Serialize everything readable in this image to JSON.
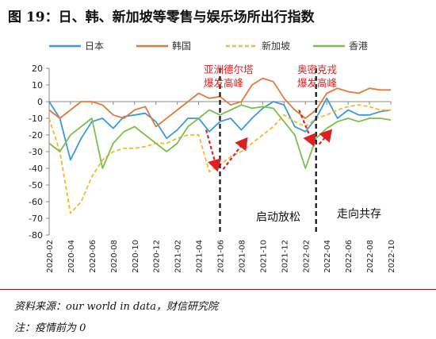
{
  "figure": {
    "title": "图 19：日、韩、新加坡等零售与娱乐场所出行指数",
    "source": "资料来源：our world in data，财信研究院",
    "note": "注：疫情前为 0"
  },
  "chart_data": {
    "type": "line",
    "ylim": [
      -80,
      20
    ],
    "yticks": [
      20,
      10,
      0,
      -10,
      -20,
      -30,
      -40,
      -50,
      -60,
      -70,
      -80
    ],
    "xlim": [
      "2020-02",
      "2022-10"
    ],
    "xticks": [
      "2020-02",
      "2020-04",
      "2020-06",
      "2020-08",
      "2020-10",
      "2020-12",
      "2021-02",
      "2021-04",
      "2021-06",
      "2021-08",
      "2021-10",
      "2021-12",
      "2022-02",
      "2022-04",
      "2022-06",
      "2022-08",
      "2022-10"
    ],
    "legend_position": "top",
    "grid": false,
    "series": [
      {
        "name": "日本",
        "color": "#3a9ad9",
        "dash": "solid",
        "x": [
          "2020-02",
          "2020-03",
          "2020-04",
          "2020-05",
          "2020-06",
          "2020-07",
          "2020-08",
          "2020-09",
          "2020-10",
          "2020-11",
          "2020-12",
          "2021-01",
          "2021-02",
          "2021-03",
          "2021-04",
          "2021-05",
          "2021-06",
          "2021-07",
          "2021-08",
          "2021-09",
          "2021-10",
          "2021-11",
          "2021-12",
          "2022-01",
          "2022-02",
          "2022-03",
          "2022-04",
          "2022-05",
          "2022-06",
          "2022-07",
          "2022-08",
          "2022-09",
          "2022-10"
        ],
        "values": [
          0,
          -10,
          -35,
          -22,
          -12,
          -10,
          -16,
          -9,
          -8,
          -7,
          -12,
          -22,
          -17,
          -10,
          -10,
          -18,
          -12,
          -10,
          -17,
          -10,
          -4,
          0,
          -2,
          -15,
          -18,
          -10,
          2,
          -10,
          -5,
          -8,
          -8,
          -6,
          -5
        ]
      },
      {
        "name": "韩国",
        "color": "#e07b39",
        "dash": "solid",
        "x": [
          "2020-02",
          "2020-03",
          "2020-04",
          "2020-05",
          "2020-06",
          "2020-07",
          "2020-08",
          "2020-09",
          "2020-10",
          "2020-11",
          "2020-12",
          "2021-01",
          "2021-02",
          "2021-03",
          "2021-04",
          "2021-05",
          "2021-06",
          "2021-07",
          "2021-08",
          "2021-09",
          "2021-10",
          "2021-11",
          "2021-12",
          "2022-01",
          "2022-02",
          "2022-03",
          "2022-04",
          "2022-05",
          "2022-06",
          "2022-07",
          "2022-08",
          "2022-09",
          "2022-10"
        ],
        "values": [
          -5,
          -10,
          -5,
          0,
          0,
          -2,
          -8,
          -10,
          -5,
          -3,
          -15,
          -10,
          -5,
          0,
          5,
          2,
          3,
          -2,
          0,
          10,
          14,
          12,
          2,
          -5,
          -10,
          -5,
          5,
          8,
          6,
          5,
          8,
          7,
          7
        ]
      },
      {
        "name": "新加坡",
        "color": "#f5b82e",
        "dash": "dashed",
        "x": [
          "2020-02",
          "2020-03",
          "2020-04",
          "2020-05",
          "2020-06",
          "2020-07",
          "2020-08",
          "2020-09",
          "2020-10",
          "2020-11",
          "2020-12",
          "2021-01",
          "2021-02",
          "2021-03",
          "2021-04",
          "2021-05",
          "2021-06",
          "2021-07",
          "2021-08",
          "2021-09",
          "2021-10",
          "2021-11",
          "2021-12",
          "2022-01",
          "2022-02",
          "2022-03",
          "2022-04",
          "2022-05",
          "2022-06",
          "2022-07",
          "2022-08",
          "2022-09",
          "2022-10"
        ],
        "values": [
          -10,
          -30,
          -67,
          -60,
          -45,
          -35,
          -30,
          -28,
          -28,
          -27,
          -25,
          -25,
          -22,
          -20,
          -20,
          -42,
          -38,
          -33,
          -30,
          -25,
          -20,
          -15,
          -8,
          -12,
          -15,
          -10,
          -8,
          -5,
          -3,
          -2,
          -3,
          -5,
          -5
        ]
      },
      {
        "name": "香港",
        "color": "#7cbf4e",
        "dash": "solid",
        "x": [
          "2020-02",
          "2020-03",
          "2020-04",
          "2020-05",
          "2020-06",
          "2020-07",
          "2020-08",
          "2020-09",
          "2020-10",
          "2020-11",
          "2020-12",
          "2021-01",
          "2021-02",
          "2021-03",
          "2021-04",
          "2021-05",
          "2021-06",
          "2021-07",
          "2021-08",
          "2021-09",
          "2021-10",
          "2021-11",
          "2021-12",
          "2022-01",
          "2022-02",
          "2022-03",
          "2022-04",
          "2022-05",
          "2022-06",
          "2022-07",
          "2022-08",
          "2022-09",
          "2022-10"
        ],
        "values": [
          -25,
          -30,
          -20,
          -15,
          -10,
          -40,
          -25,
          -18,
          -15,
          -20,
          -25,
          -30,
          -25,
          -15,
          -10,
          -5,
          -8,
          -5,
          -2,
          -4,
          -3,
          -4,
          -12,
          -20,
          -40,
          -22,
          -16,
          -12,
          -10,
          -12,
          -10,
          -10,
          -11
        ]
      }
    ],
    "annotations": [
      {
        "id": "delta",
        "lines": [
          "亚洲德尔塔",
          "爆发高峰"
        ],
        "color": "#e02020"
      },
      {
        "id": "omicron",
        "lines": [
          "奥密克戎",
          "爆发高峰"
        ],
        "color": "#e02020"
      },
      {
        "id": "start",
        "text": "启动放松",
        "color": "#111111"
      },
      {
        "id": "coexist",
        "text": "走向共存",
        "color": "#111111"
      }
    ],
    "vlines": [
      "2021-06",
      "2022-03"
    ]
  }
}
